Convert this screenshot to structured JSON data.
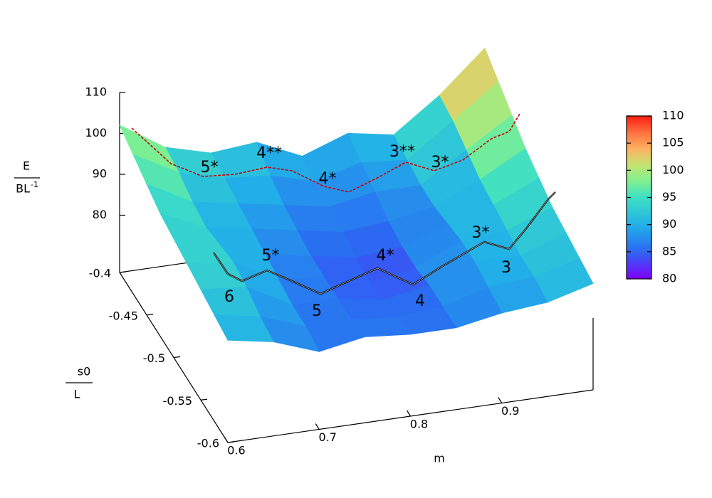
{
  "chart_data": {
    "type": "surface",
    "xlabel": "m",
    "ylabel": {
      "num": "s0",
      "den": "L"
    },
    "zlabel": {
      "num": "E",
      "den": "BL",
      "den_sup": "-1"
    },
    "x": [
      0.6,
      0.65,
      0.7,
      0.75,
      0.8,
      0.85,
      0.9,
      0.95,
      1.0
    ],
    "y": [
      -0.4,
      -0.425,
      -0.45,
      -0.475,
      -0.5,
      -0.525,
      -0.55,
      -0.575,
      -0.6
    ],
    "z": [
      [
        102,
        95,
        92,
        93,
        88,
        92,
        90,
        98,
        108
      ],
      [
        100,
        94,
        91,
        90,
        87,
        90,
        89,
        97,
        105
      ],
      [
        98,
        92,
        90,
        88,
        86,
        88,
        88,
        95,
        102
      ],
      [
        96,
        91,
        89,
        87,
        85,
        86,
        88,
        93,
        99
      ],
      [
        95,
        92,
        88,
        86,
        84,
        85,
        89,
        92,
        97
      ],
      [
        94,
        93,
        87,
        86,
        83,
        85,
        90,
        91,
        95
      ],
      [
        93,
        92,
        86,
        86,
        84,
        86,
        90,
        90,
        94
      ],
      [
        92,
        90,
        86,
        86,
        85,
        86,
        89,
        90,
        93
      ],
      [
        91,
        89,
        85,
        87,
        86,
        86,
        88,
        89,
        92
      ]
    ],
    "xlim": [
      0.6,
      1.0
    ],
    "ylim": [
      -0.6,
      -0.4
    ],
    "zlim": [
      66,
      110
    ],
    "xticks": [
      0.6,
      0.7,
      0.8,
      0.9
    ],
    "yticks": [
      -0.4,
      -0.45,
      -0.5,
      -0.55,
      -0.6
    ],
    "zticks": [
      80,
      90,
      100,
      110
    ],
    "palette": "rainbow",
    "colorbar": {
      "lim": [
        80,
        110
      ],
      "ticks": [
        80,
        85,
        90,
        95,
        100,
        105,
        110
      ]
    },
    "annotations": [
      "5*",
      "4**",
      "4*",
      "3**",
      "3*",
      "5*",
      "4*",
      "3*",
      "6",
      "5",
      "4",
      "3"
    ]
  }
}
